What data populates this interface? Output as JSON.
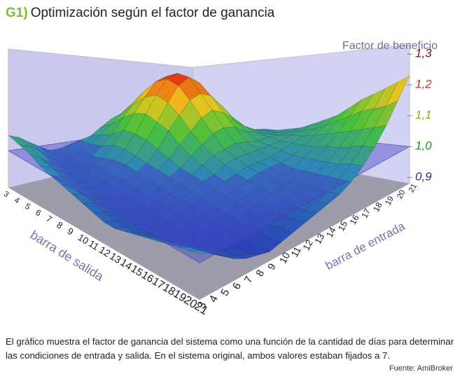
{
  "figure_label": "G1)",
  "chart_data": {
    "type": "surface",
    "title": "Optimización según el factor de ganancia",
    "x_label": "barra de salida",
    "y_label": "barra de entrada",
    "z_label": "Factor de beneficio",
    "x": [
      3,
      4,
      5,
      6,
      7,
      8,
      9,
      10,
      11,
      12,
      13,
      14,
      15,
      16,
      17,
      18,
      19,
      20,
      21
    ],
    "y": [
      3,
      4,
      5,
      6,
      7,
      8,
      9,
      10,
      11,
      12,
      13,
      14,
      15,
      16,
      17,
      18,
      19,
      20,
      21
    ],
    "zlim": [
      0.88,
      1.33
    ],
    "zticks": [
      {
        "value": 0.9,
        "label": "0,9"
      },
      {
        "value": 1.0,
        "label": "1,0"
      },
      {
        "value": 1.1,
        "label": "1,1"
      },
      {
        "value": 1.2,
        "label": "1,2"
      },
      {
        "value": 1.3,
        "label": "1,3"
      }
    ],
    "ztick_colors": [
      "#22308a",
      "#1f8f2c",
      "#8ea51a",
      "#b3401c",
      "#7a1212"
    ],
    "colorscale": [
      "#2a3cb8",
      "#2f86b8",
      "#46c23c",
      "#f2c41c",
      "#e0220f"
    ],
    "reference_level": 1.0,
    "z": [
      [
        1.05,
        1.04,
        1.02,
        1.0,
        0.98,
        0.98,
        0.99,
        1.0,
        1.01,
        1.04,
        1.07,
        1.09,
        1.1,
        1.09,
        1.07,
        1.04,
        1.01,
        0.99,
        0.98
      ],
      [
        1.04,
        1.03,
        1.01,
        0.98,
        0.96,
        0.97,
        0.99,
        1.0,
        1.03,
        1.07,
        1.11,
        1.15,
        1.17,
        1.15,
        1.12,
        1.07,
        1.03,
        1.0,
        0.98
      ],
      [
        1.03,
        1.01,
        0.99,
        0.97,
        0.95,
        0.96,
        0.98,
        1.01,
        1.05,
        1.11,
        1.16,
        1.21,
        1.23,
        1.21,
        1.17,
        1.11,
        1.05,
        1.01,
        0.99
      ],
      [
        1.01,
        1.0,
        0.98,
        0.96,
        0.95,
        0.97,
        0.99,
        1.03,
        1.08,
        1.14,
        1.2,
        1.26,
        1.28,
        1.26,
        1.21,
        1.13,
        1.07,
        1.02,
        1.0
      ],
      [
        1.0,
        0.99,
        0.97,
        0.95,
        0.96,
        0.98,
        1.0,
        1.03,
        1.08,
        1.15,
        1.22,
        1.28,
        1.3,
        1.27,
        1.22,
        1.14,
        1.07,
        1.03,
        1.0
      ],
      [
        0.99,
        0.98,
        0.96,
        0.95,
        0.96,
        0.97,
        1.0,
        1.02,
        1.07,
        1.13,
        1.2,
        1.26,
        1.29,
        1.26,
        1.2,
        1.13,
        1.07,
        1.02,
        1.0
      ],
      [
        0.98,
        0.97,
        0.95,
        0.94,
        0.95,
        0.97,
        0.99,
        1.01,
        1.05,
        1.11,
        1.16,
        1.21,
        1.23,
        1.21,
        1.16,
        1.1,
        1.05,
        1.02,
        1.01
      ],
      [
        0.97,
        0.96,
        0.94,
        0.94,
        0.95,
        0.96,
        0.98,
        1.0,
        1.03,
        1.07,
        1.11,
        1.15,
        1.17,
        1.15,
        1.11,
        1.07,
        1.04,
        1.02,
        1.01
      ],
      [
        0.96,
        0.95,
        0.94,
        0.93,
        0.94,
        0.95,
        0.97,
        0.99,
        1.01,
        1.04,
        1.07,
        1.1,
        1.11,
        1.1,
        1.07,
        1.05,
        1.03,
        1.02,
        1.02
      ],
      [
        0.95,
        0.94,
        0.93,
        0.93,
        0.94,
        0.95,
        0.96,
        0.98,
        1.0,
        1.02,
        1.04,
        1.05,
        1.06,
        1.05,
        1.04,
        1.04,
        1.03,
        1.03,
        1.03
      ],
      [
        0.95,
        0.94,
        0.93,
        0.92,
        0.93,
        0.94,
        0.96,
        0.97,
        0.99,
        1.0,
        1.02,
        1.03,
        1.03,
        1.03,
        1.03,
        1.03,
        1.04,
        1.04,
        1.05
      ],
      [
        0.96,
        0.94,
        0.92,
        0.92,
        0.93,
        0.94,
        0.95,
        0.96,
        0.98,
        0.99,
        1.0,
        1.01,
        1.01,
        1.01,
        1.02,
        1.03,
        1.04,
        1.05,
        1.07
      ],
      [
        0.97,
        0.95,
        0.93,
        0.92,
        0.92,
        0.93,
        0.94,
        0.95,
        0.97,
        0.98,
        0.99,
        1.0,
        1.0,
        1.0,
        1.01,
        1.03,
        1.05,
        1.07,
        1.09
      ],
      [
        0.98,
        0.96,
        0.93,
        0.92,
        0.92,
        0.92,
        0.93,
        0.94,
        0.96,
        0.97,
        0.98,
        0.99,
        0.99,
        0.99,
        1.01,
        1.03,
        1.06,
        1.09,
        1.12
      ],
      [
        0.99,
        0.97,
        0.94,
        0.92,
        0.91,
        0.92,
        0.92,
        0.93,
        0.95,
        0.96,
        0.97,
        0.98,
        0.98,
        0.99,
        1.01,
        1.04,
        1.07,
        1.11,
        1.15
      ],
      [
        1.0,
        0.98,
        0.95,
        0.93,
        0.91,
        0.91,
        0.92,
        0.93,
        0.94,
        0.95,
        0.96,
        0.97,
        0.98,
        0.99,
        1.01,
        1.04,
        1.08,
        1.13,
        1.17
      ],
      [
        1.01,
        0.99,
        0.96,
        0.93,
        0.92,
        0.91,
        0.91,
        0.92,
        0.93,
        0.94,
        0.95,
        0.96,
        0.97,
        0.99,
        1.01,
        1.05,
        1.09,
        1.14,
        1.19
      ],
      [
        1.02,
        1.0,
        0.97,
        0.94,
        0.92,
        0.91,
        0.91,
        0.92,
        0.93,
        0.94,
        0.95,
        0.96,
        0.97,
        0.99,
        1.02,
        1.06,
        1.1,
        1.15,
        1.21
      ],
      [
        1.03,
        1.01,
        0.98,
        0.95,
        0.93,
        0.92,
        0.91,
        0.92,
        0.93,
        0.94,
        0.95,
        0.96,
        0.97,
        0.99,
        1.02,
        1.06,
        1.11,
        1.17,
        1.23
      ]
    ]
  },
  "caption": "El gráfico muestra el factor de ganancia del sistema como una función de la cantidad de días para determinar las condiciones de entrada y salida. En el sistema original, ambos valores estaban fijados a 7.",
  "source": "Fuente: AmiBroker"
}
